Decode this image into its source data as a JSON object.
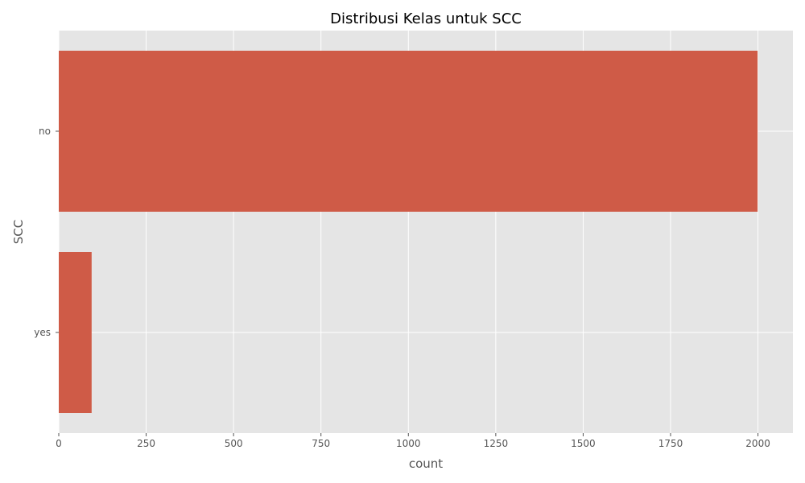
{
  "chart_data": {
    "type": "bar",
    "orientation": "horizontal",
    "title": "Distribusi Kelas untuk SCC",
    "xlabel": "count",
    "ylabel": "SCC",
    "categories": [
      "no",
      "yes"
    ],
    "values": [
      1999,
      94
    ],
    "xlim": [
      0,
      2100
    ],
    "xticks": [
      0,
      250,
      500,
      750,
      1000,
      1250,
      1500,
      1750,
      2000
    ],
    "grid": true,
    "colors": {
      "bar": "#cf5b47",
      "plot_background": "#e5e5e5",
      "grid": "#ffffff"
    }
  }
}
